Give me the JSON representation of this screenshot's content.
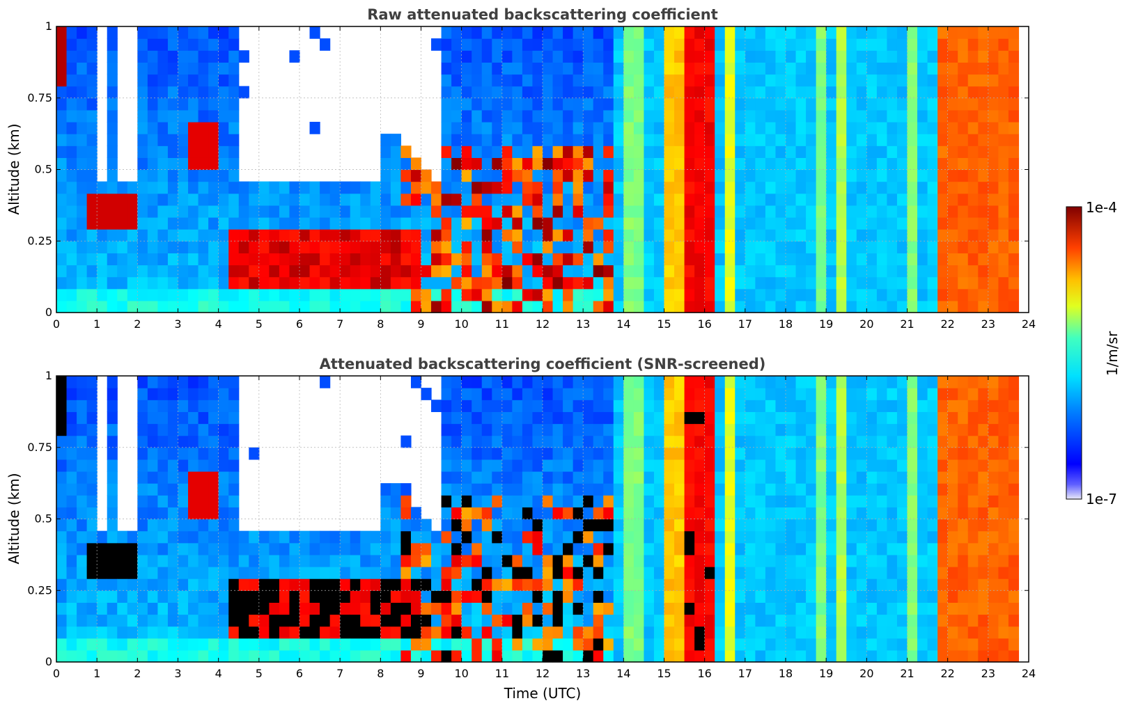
{
  "chart_data": [
    {
      "type": "heatmap",
      "title": "Raw attenuated backscattering coefficient",
      "xlabel": "",
      "ylabel": "Altitude (km)",
      "xlim": [
        0,
        24
      ],
      "ylim": [
        0,
        1
      ],
      "xticks": [
        "0",
        "1",
        "2",
        "3",
        "4",
        "5",
        "6",
        "7",
        "8",
        "9",
        "10",
        "11",
        "12",
        "13",
        "14",
        "15",
        "16",
        "17",
        "18",
        "19",
        "20",
        "21",
        "22",
        "23",
        "24"
      ],
      "yticks": [
        "0",
        "0.25",
        "0.5",
        "0.75",
        "1"
      ],
      "grid": true
    },
    {
      "type": "heatmap",
      "title": "Attenuated backscattering coefficient (SNR-screened)",
      "xlabel": "Time (UTC)",
      "ylabel": "Altitude (km)",
      "xlim": [
        0,
        24
      ],
      "ylim": [
        0,
        1
      ],
      "xticks": [
        "0",
        "1",
        "2",
        "3",
        "4",
        "5",
        "6",
        "7",
        "8",
        "9",
        "10",
        "11",
        "12",
        "13",
        "14",
        "15",
        "16",
        "17",
        "18",
        "19",
        "20",
        "21",
        "22",
        "23",
        "24"
      ],
      "yticks": [
        "0",
        "0.25",
        "0.5",
        "0.75",
        "1"
      ],
      "grid": true
    }
  ],
  "colorbar": {
    "label": "1/m/sr",
    "max_label": "1e-4",
    "min_label": "1e-7",
    "scale": "log",
    "range": [
      1e-07,
      0.0001
    ],
    "colormap": "jet"
  }
}
